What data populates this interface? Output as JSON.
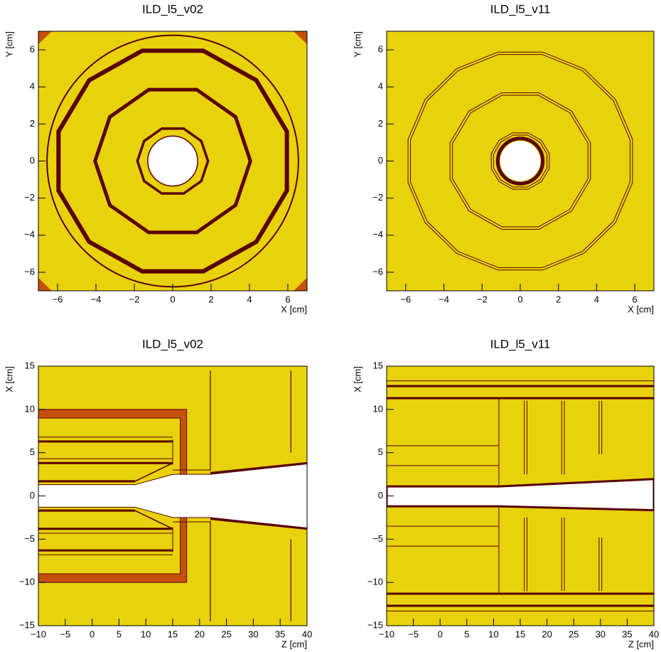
{
  "chart_data": [
    {
      "type": "geometry",
      "title": "ILD_l5_v02",
      "xlabel": "X [cm]",
      "ylabel": "Y [cm]",
      "xlim": [
        -7,
        7
      ],
      "ylim": [
        -7,
        7
      ],
      "xticks": [
        {
          "value": -6,
          "label": "−6"
        },
        {
          "value": -4,
          "label": "−4"
        },
        {
          "value": -2,
          "label": "−2"
        },
        0,
        2,
        4,
        6
      ],
      "yticks": [
        {
          "value": -6,
          "label": "−6"
        },
        {
          "value": -4,
          "label": "−4"
        },
        {
          "value": -2,
          "label": "−2"
        },
        0,
        2,
        4,
        6
      ]
    },
    {
      "type": "geometry",
      "title": "ILD_l5_v11",
      "xlabel": "X [cm]",
      "ylabel": "Y [cm]",
      "xlim": [
        -7,
        7
      ],
      "ylim": [
        -7,
        7
      ],
      "xticks": [
        {
          "value": -6,
          "label": "−6"
        },
        {
          "value": -4,
          "label": "−4"
        },
        {
          "value": -2,
          "label": "−2"
        },
        0,
        2,
        4,
        6
      ],
      "yticks": [
        {
          "value": -6,
          "label": "−6"
        },
        {
          "value": -4,
          "label": "−4"
        },
        {
          "value": -2,
          "label": "−2"
        },
        0,
        2,
        4,
        6
      ]
    },
    {
      "type": "geometry",
      "title": "ILD_l5_v02",
      "xlabel": "Z [cm]",
      "ylabel": "X [cm]",
      "xlim": [
        -10,
        40
      ],
      "ylim": [
        -15,
        15
      ],
      "xticks": [
        {
          "value": -10,
          "label": "−10"
        },
        {
          "value": -5,
          "label": "−5"
        },
        0,
        5,
        10,
        15,
        20,
        25,
        30,
        35,
        40
      ],
      "yticks": [
        {
          "value": -15,
          "label": "−15"
        },
        {
          "value": -10,
          "label": "−10"
        },
        {
          "value": -5,
          "label": "−5"
        },
        0,
        5,
        10,
        15
      ]
    },
    {
      "type": "geometry",
      "title": "ILD_l5_v11",
      "xlabel": "Z [cm]",
      "ylabel": "X [cm]",
      "xlim": [
        -10,
        40
      ],
      "ylim": [
        -15,
        15
      ],
      "xticks": [
        {
          "value": -10,
          "label": "−10"
        },
        {
          "value": -5,
          "label": "−5"
        },
        0,
        5,
        10,
        15,
        20,
        25,
        30,
        35,
        40
      ],
      "yticks": [
        {
          "value": -15,
          "label": "−15"
        },
        {
          "value": -10,
          "label": "−10"
        },
        {
          "value": -5,
          "label": "−5"
        },
        0,
        5,
        10,
        15
      ]
    }
  ]
}
